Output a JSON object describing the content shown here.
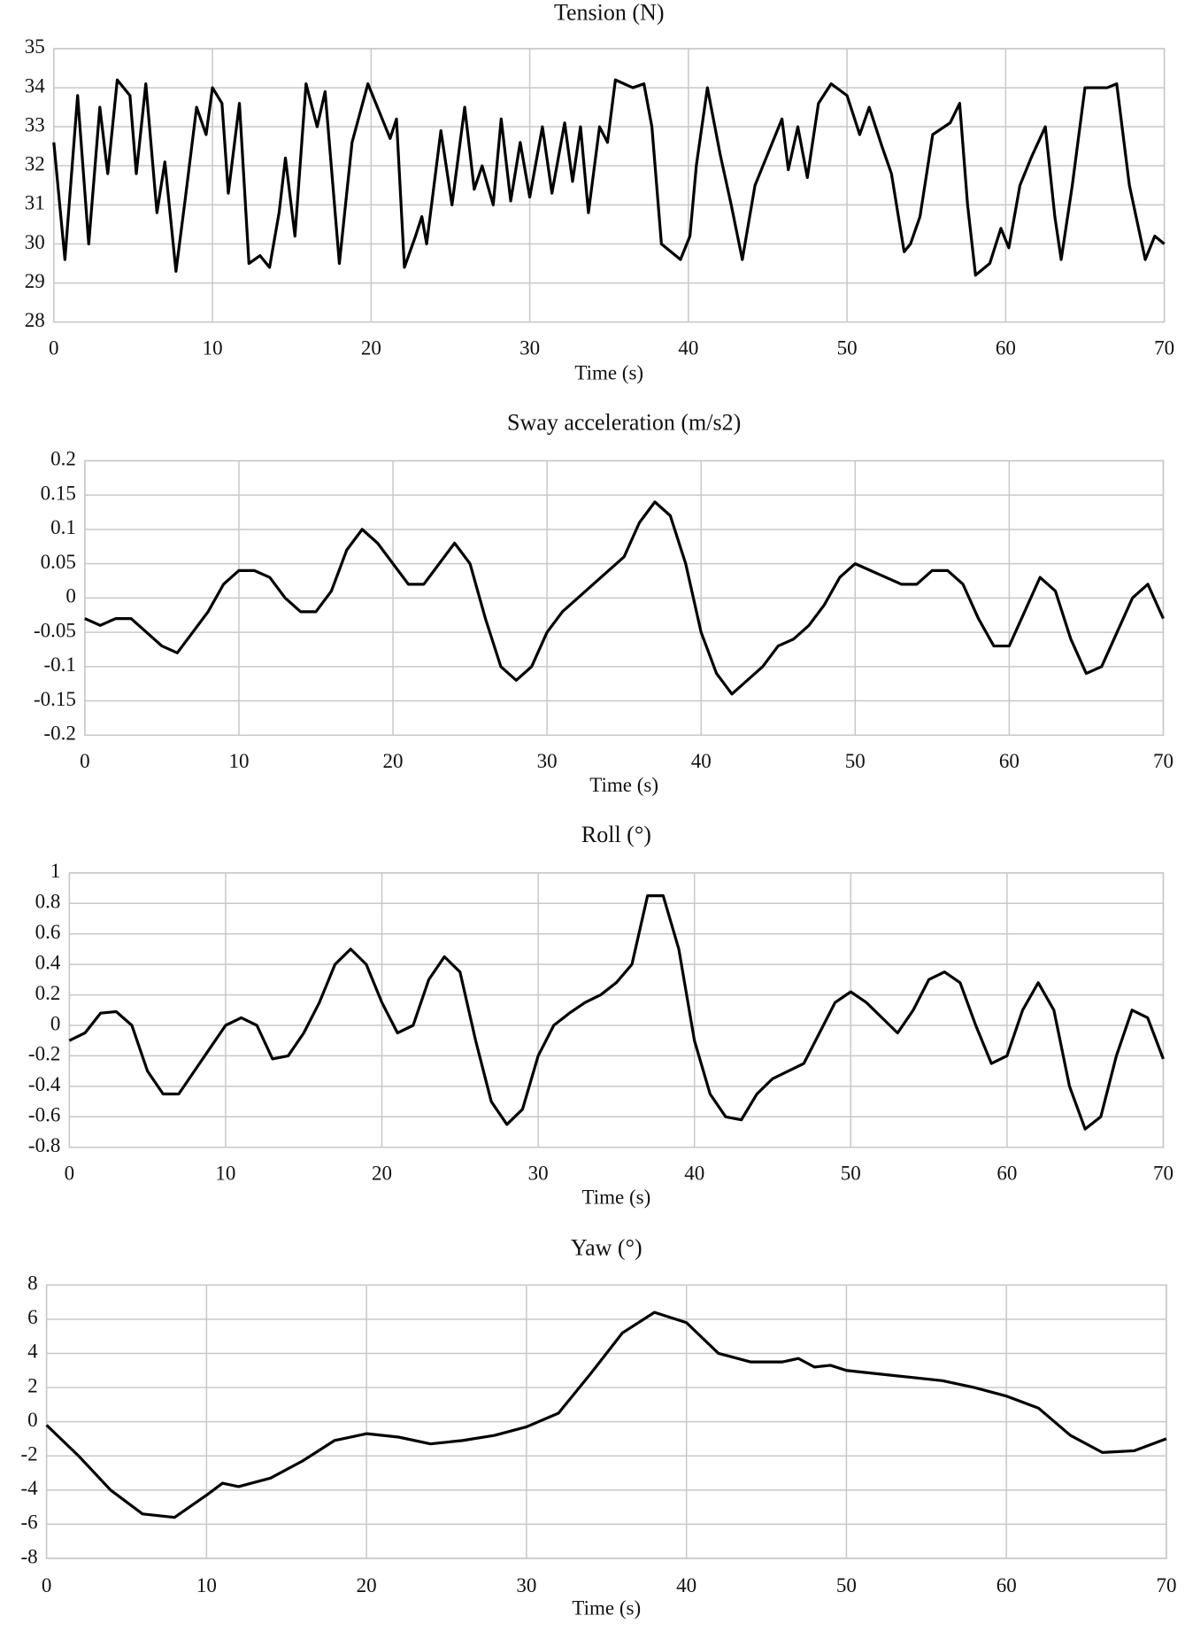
{
  "chart_data": [
    {
      "type": "line",
      "title": "Tension (N)",
      "xlabel": "Time (s)",
      "grid": true,
      "color": "#000000",
      "xlim": [
        0,
        70
      ],
      "xticks": [
        0,
        10,
        20,
        30,
        40,
        50,
        60,
        70
      ],
      "ylim": [
        28,
        35
      ],
      "yticks": [
        28,
        29,
        30,
        31,
        32,
        33,
        34,
        35
      ],
      "series": [
        {
          "x": [
            0,
            0.7,
            1.5,
            2.2,
            2.9,
            3.4,
            4,
            4.8,
            5.2,
            5.8,
            6.5,
            7,
            7.7,
            8.3,
            9,
            9.6,
            10,
            10.6,
            11,
            11.7,
            12.3,
            13,
            13.6,
            14.2,
            14.6,
            15.2,
            15.9,
            16.6,
            17.1,
            18,
            18.8,
            19.8,
            20.6,
            21.2,
            21.6,
            22.1,
            22.8,
            23.2,
            23.5,
            24.4,
            25.1,
            25.9,
            26.5,
            27,
            27.7,
            28.2,
            28.8,
            29.4,
            30,
            30.8,
            31.4,
            32.2,
            32.7,
            33.2,
            33.7,
            34.4,
            34.9,
            35.4,
            36.5,
            37.2,
            37.7,
            38.3,
            39.5,
            40.1,
            40.5,
            41.2,
            42,
            42.7,
            43.4,
            44.2,
            45,
            45.9,
            46.3,
            46.9,
            47.5,
            48.2,
            49,
            50,
            50.8,
            51.4,
            52.2,
            52.8,
            53.6,
            54,
            54.6,
            55.4,
            56.5,
            57.1,
            57.6,
            58.1,
            59,
            59.7,
            60.2,
            60.9,
            61.6,
            62.5,
            63.1,
            63.5,
            64.2,
            65,
            66.4,
            67,
            67.8,
            68.8,
            69.4,
            70
          ],
          "values": [
            32.6,
            29.6,
            33.8,
            30.0,
            33.5,
            31.8,
            34.2,
            33.8,
            31.8,
            34.1,
            30.8,
            32.1,
            29.3,
            31.2,
            33.5,
            32.8,
            34.0,
            33.6,
            31.3,
            33.6,
            29.5,
            29.7,
            29.4,
            30.8,
            32.2,
            30.2,
            34.1,
            33.0,
            33.9,
            29.5,
            32.6,
            34.1,
            33.3,
            32.7,
            33.2,
            29.4,
            30.2,
            30.7,
            30.0,
            32.9,
            31.0,
            33.5,
            31.4,
            32.0,
            31.0,
            33.2,
            31.1,
            32.6,
            31.2,
            33.0,
            31.3,
            33.1,
            31.6,
            33.0,
            30.8,
            33.0,
            32.6,
            34.2,
            34.0,
            34.1,
            33.0,
            30.0,
            29.6,
            30.2,
            32.0,
            34.0,
            32.3,
            31.0,
            29.6,
            31.5,
            32.3,
            33.2,
            31.9,
            33.0,
            31.7,
            33.6,
            34.1,
            33.8,
            32.8,
            33.5,
            32.5,
            31.8,
            29.8,
            30.0,
            30.7,
            32.8,
            33.1,
            33.6,
            31.0,
            29.2,
            29.5,
            30.4,
            29.9,
            31.5,
            32.2,
            33.0,
            30.7,
            29.6,
            31.5,
            34.0,
            34.0,
            34.1,
            31.5,
            29.6,
            30.2,
            30.0
          ]
        }
      ]
    },
    {
      "type": "line",
      "title": "Sway acceleration  (m/s2)",
      "xlabel": "Time (s)",
      "grid": true,
      "color": "#000000",
      "xlim": [
        0,
        70
      ],
      "xticks": [
        0,
        10,
        20,
        30,
        40,
        50,
        60,
        70
      ],
      "ylim": [
        -0.2,
        0.2
      ],
      "yticks": [
        -0.2,
        -0.15,
        -0.1,
        -0.05,
        0,
        0.05,
        0.1,
        0.15,
        0.2
      ],
      "series": [
        {
          "x": [
            0,
            1,
            2,
            3,
            4,
            5,
            6,
            7,
            8,
            9,
            10,
            11,
            12,
            13,
            14,
            15,
            16,
            17,
            18,
            19,
            20,
            21,
            22,
            23,
            24,
            25,
            26,
            27,
            28,
            29,
            30,
            31,
            32,
            33,
            34,
            35,
            36,
            37,
            38,
            39,
            40,
            41,
            42,
            43,
            44,
            45,
            46,
            47,
            48,
            49,
            50,
            51,
            52,
            53,
            54,
            55,
            56,
            57,
            58,
            59,
            60,
            61,
            62,
            63,
            64,
            65,
            66,
            67,
            68,
            69,
            70
          ],
          "values": [
            -0.03,
            -0.04,
            -0.03,
            -0.03,
            -0.05,
            -0.07,
            -0.08,
            -0.05,
            -0.02,
            0.02,
            0.04,
            0.04,
            0.03,
            0.0,
            -0.02,
            -0.02,
            0.01,
            0.07,
            0.1,
            0.08,
            0.05,
            0.02,
            0.02,
            0.05,
            0.08,
            0.05,
            -0.03,
            -0.1,
            -0.12,
            -0.1,
            -0.05,
            -0.02,
            0.0,
            0.02,
            0.04,
            0.06,
            0.11,
            0.14,
            0.12,
            0.05,
            -0.05,
            -0.11,
            -0.14,
            -0.12,
            -0.1,
            -0.07,
            -0.06,
            -0.04,
            -0.01,
            0.03,
            0.05,
            0.04,
            0.03,
            0.02,
            0.02,
            0.04,
            0.04,
            0.02,
            -0.03,
            -0.07,
            -0.07,
            -0.02,
            0.03,
            0.01,
            -0.06,
            -0.11,
            -0.1,
            -0.05,
            0.0,
            0.02,
            -0.03
          ]
        }
      ]
    },
    {
      "type": "line",
      "title": "Roll (°)",
      "xlabel": "Time (s)",
      "grid": true,
      "color": "#000000",
      "xlim": [
        0,
        70
      ],
      "xticks": [
        0,
        10,
        20,
        30,
        40,
        50,
        60,
        70
      ],
      "ylim": [
        -0.8,
        1
      ],
      "yticks": [
        -0.8,
        -0.6,
        -0.4,
        -0.2,
        0,
        0.2,
        0.4,
        0.6,
        0.8,
        1
      ],
      "series": [
        {
          "x": [
            0,
            1,
            2,
            3,
            4,
            5,
            6,
            7,
            8,
            9,
            10,
            11,
            12,
            13,
            14,
            15,
            16,
            17,
            18,
            19,
            20,
            21,
            22,
            23,
            24,
            25,
            26,
            27,
            28,
            29,
            30,
            31,
            32,
            33,
            34,
            35,
            36,
            37,
            38,
            39,
            40,
            41,
            42,
            43,
            44,
            45,
            46,
            47,
            48,
            49,
            50,
            51,
            52,
            53,
            54,
            55,
            56,
            57,
            58,
            59,
            60,
            61,
            62,
            63,
            64,
            65,
            66,
            67,
            68,
            69,
            70
          ],
          "values": [
            -0.1,
            -0.05,
            0.08,
            0.09,
            0.0,
            -0.3,
            -0.45,
            -0.45,
            -0.3,
            -0.15,
            0.0,
            0.05,
            0.0,
            -0.22,
            -0.2,
            -0.05,
            0.15,
            0.4,
            0.5,
            0.4,
            0.15,
            -0.05,
            0.0,
            0.3,
            0.45,
            0.35,
            -0.1,
            -0.5,
            -0.65,
            -0.55,
            -0.2,
            0.0,
            0.08,
            0.15,
            0.2,
            0.28,
            0.4,
            0.85,
            0.85,
            0.5,
            -0.1,
            -0.45,
            -0.6,
            -0.62,
            -0.45,
            -0.35,
            -0.3,
            -0.25,
            -0.05,
            0.15,
            0.22,
            0.15,
            0.05,
            -0.05,
            0.1,
            0.3,
            0.35,
            0.28,
            0.0,
            -0.25,
            -0.2,
            0.1,
            0.28,
            0.1,
            -0.4,
            -0.68,
            -0.6,
            -0.2,
            0.1,
            0.05,
            -0.22
          ]
        }
      ]
    },
    {
      "type": "line",
      "title": "Yaw (°)",
      "xlabel": "Time (s)",
      "grid": true,
      "color": "#000000",
      "xlim": [
        0,
        70
      ],
      "xticks": [
        0,
        10,
        20,
        30,
        40,
        50,
        60,
        70
      ],
      "ylim": [
        -8,
        8
      ],
      "yticks": [
        -8,
        -6,
        -4,
        -2,
        0,
        2,
        4,
        6,
        8
      ],
      "series": [
        {
          "x": [
            0,
            2,
            4,
            6,
            8,
            10,
            11,
            12,
            14,
            16,
            18,
            20,
            22,
            24,
            26,
            28,
            30,
            32,
            34,
            36,
            38,
            40,
            42,
            44,
            46,
            47,
            48,
            49,
            50,
            52,
            54,
            56,
            58,
            60,
            62,
            64,
            66,
            68,
            70
          ],
          "values": [
            -0.2,
            -2,
            -4,
            -5.4,
            -5.6,
            -4.3,
            -3.6,
            -3.8,
            -3.3,
            -2.3,
            -1.1,
            -0.7,
            -0.9,
            -1.3,
            -1.1,
            -0.8,
            -0.3,
            0.5,
            2.8,
            5.2,
            6.4,
            5.8,
            4.0,
            3.5,
            3.5,
            3.7,
            3.2,
            3.3,
            3.0,
            2.8,
            2.6,
            2.4,
            2.0,
            1.5,
            0.8,
            -0.8,
            -1.8,
            -1.7,
            -1.0
          ]
        }
      ]
    }
  ]
}
